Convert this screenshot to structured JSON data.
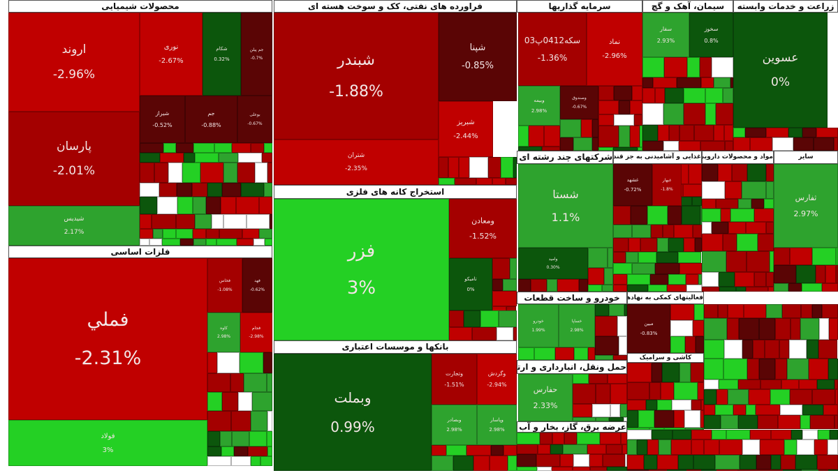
{
  "chart_data": {
    "type": "heatmap",
    "subtype": "treemap",
    "palette": {
      "strong_red": "#c00000",
      "red": "#a40000",
      "dark_red": "#5a0505",
      "dark_green": "#0c560c",
      "green": "#2ea32e",
      "bright_green": "#24d024",
      "empty": "#ffffff"
    },
    "sectors": [
      {
        "name": "محصولات شیمیایی",
        "tiles": [
          {
            "symbol": "اروند",
            "change": "-2.96%"
          },
          {
            "symbol": "پارسان",
            "change": "-2.01%"
          },
          {
            "symbol": "شیدیس",
            "change": "2.17%"
          },
          {
            "symbol": "نوری",
            "change": "-2.67%"
          },
          {
            "symbol": "شکام",
            "change": "0.32%"
          },
          {
            "symbol": "جم پیلن",
            "change": "-0.7%"
          },
          {
            "symbol": "شیراز",
            "change": "-0.52%"
          },
          {
            "symbol": "جم",
            "change": "-0.88%"
          },
          {
            "symbol": "بوعلی",
            "change": "-0.67%"
          }
        ]
      },
      {
        "name": "فلزات اساسی",
        "tiles": [
          {
            "symbol": "فملي",
            "change": "-2.31%"
          },
          {
            "symbol": "فولاد",
            "change": "3%"
          },
          {
            "symbol": "فخاس",
            "change": "-1.08%"
          },
          {
            "symbol": "فهد",
            "change": "-0.62%"
          },
          {
            "symbol": "کاوه",
            "change": "2.98%"
          },
          {
            "symbol": "فجام",
            "change": "-2.98%"
          }
        ]
      },
      {
        "name": "فراورده های نفتی، کک و سوخت هسته ای",
        "tiles": [
          {
            "symbol": "شبندر",
            "change": "-1.88%"
          },
          {
            "symbol": "شتران",
            "change": "-2.35%"
          },
          {
            "symbol": "شپنا",
            "change": "-0.85%"
          },
          {
            "symbol": "شبریز",
            "change": "-2.44%"
          }
        ]
      },
      {
        "name": "استخراج کانه های فلزی",
        "tiles": [
          {
            "symbol": "فزر",
            "change": "3%"
          },
          {
            "symbol": "ومعادن",
            "change": "-1.52%"
          },
          {
            "symbol": "تامیکو",
            "change": "0%"
          }
        ]
      },
      {
        "name": "بانکها و موسسات اعتباری",
        "tiles": [
          {
            "symbol": "وبملت",
            "change": "0.99%"
          },
          {
            "symbol": "وتجارت",
            "change": "-1.51%"
          },
          {
            "symbol": "وگردش",
            "change": "-2.94%"
          },
          {
            "symbol": "وبصادر",
            "change": "2.98%"
          },
          {
            "symbol": "وپاسار",
            "change": "2.98%"
          }
        ]
      },
      {
        "name": "سرمایه گذاریها",
        "tiles": [
          {
            "symbol": "سکه0412پ03",
            "change": "-1.36%"
          },
          {
            "symbol": "نماد",
            "change": "-2.96%"
          },
          {
            "symbol": "وبیمه",
            "change": "2.98%"
          },
          {
            "symbol": "وصندوق",
            "change": "-0.67%"
          }
        ]
      },
      {
        "name": "سیمان، آهک و گچ",
        "tiles": [
          {
            "symbol": "سفار",
            "change": "2.93%"
          },
          {
            "symbol": "سخوز",
            "change": "0.8%"
          }
        ]
      },
      {
        "name": "زراعت و خدمات وابسته",
        "tiles": [
          {
            "symbol": "عسوین",
            "change": "0%"
          }
        ]
      },
      {
        "name": "شرکتهای چند رشته ای صنعتی",
        "tiles": [
          {
            "symbol": "شستا",
            "change": "1.1%"
          },
          {
            "symbol": "وامید",
            "change": "0.30%"
          }
        ]
      },
      {
        "name": "غذایی و آشامیدنی به جز قند و شکر",
        "tiles": [
          {
            "symbol": "غشهد",
            "change": "-0.72%"
          },
          {
            "symbol": "غبهار",
            "change": "-1.8%"
          }
        ]
      },
      {
        "name": "مواد و محصولات دارویی",
        "tiles": []
      },
      {
        "name": "سایر",
        "tiles": [
          {
            "symbol": "ثفارس",
            "change": "2.97%"
          }
        ]
      },
      {
        "name": "خودرو و ساخت قطعات",
        "tiles": [
          {
            "symbol": "خودرو",
            "change": "1.99%"
          },
          {
            "symbol": "خساپا",
            "change": "2.98%"
          }
        ]
      },
      {
        "name": "فعالیتهای کمکی به نهادهای مالی واسط",
        "tiles": [
          {
            "symbol": "مبین",
            "change": "-0.83%"
          }
        ]
      },
      {
        "name": "حمل ونقل، انبارداری و ارتباطات",
        "tiles": [
          {
            "symbol": "حفارس",
            "change": "2.33%"
          }
        ]
      },
      {
        "name": "کاشی و سرامیک",
        "tiles": []
      },
      {
        "name": "عرضه برق، گاز، بخار و آب گرم",
        "tiles": []
      }
    ]
  }
}
